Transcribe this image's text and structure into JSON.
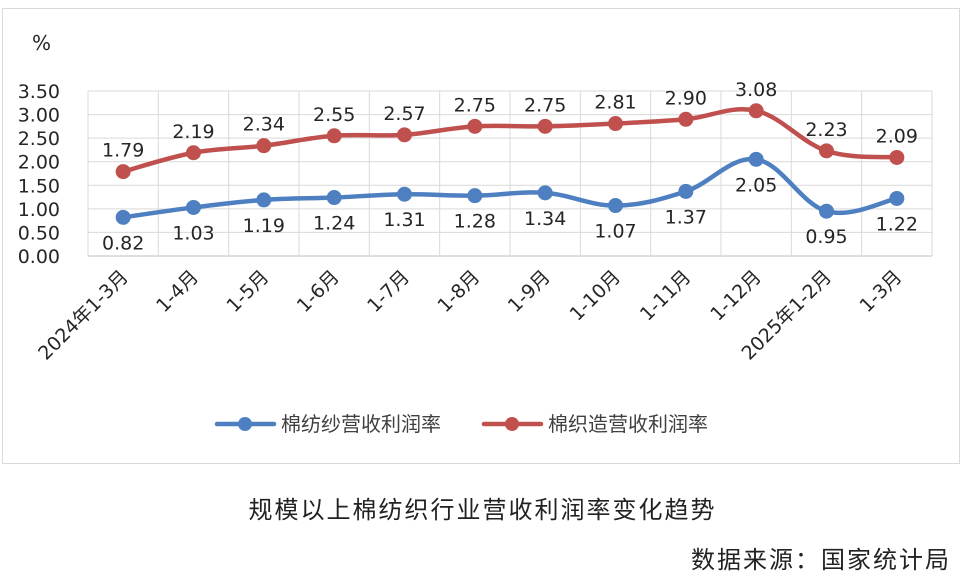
{
  "chart_data": {
    "type": "line",
    "title": "规模以上棉纺织行业营收利润率变化趋势",
    "source": "数据来源：国家统计局",
    "ylabel": "%",
    "ylim": [
      0,
      3.5
    ],
    "yticks": [
      "0.00",
      "0.50",
      "1.00",
      "1.50",
      "2.00",
      "2.50",
      "3.00",
      "3.50"
    ],
    "grid": true,
    "legend_position": "bottom",
    "categories": [
      "2024年1-3月",
      "1-4月",
      "1-5月",
      "1-6月",
      "1-7月",
      "1-8月",
      "1-9月",
      "1-10月",
      "1-11月",
      "1-12月",
      "2025年1-2月",
      "1-3月"
    ],
    "series": [
      {
        "name": "棉纺纱营收利润率",
        "color": "#4e80c1",
        "values": [
          0.82,
          1.03,
          1.19,
          1.24,
          1.31,
          1.28,
          1.34,
          1.07,
          1.37,
          2.05,
          0.95,
          1.22
        ],
        "labels": [
          "0.82",
          "1.03",
          "1.19",
          "1.24",
          "1.31",
          "1.28",
          "1.34",
          "1.07",
          "1.37",
          "2.05",
          "0.95",
          "1.22"
        ]
      },
      {
        "name": "棉织造营收利润率",
        "color": "#c0504d",
        "values": [
          1.79,
          2.19,
          2.34,
          2.55,
          2.57,
          2.75,
          2.75,
          2.81,
          2.9,
          3.08,
          2.23,
          2.09
        ],
        "labels": [
          "1.79",
          "2.19",
          "2.34",
          "2.55",
          "2.57",
          "2.75",
          "2.75",
          "2.81",
          "2.90",
          "3.08",
          "2.23",
          "2.09"
        ]
      }
    ]
  }
}
